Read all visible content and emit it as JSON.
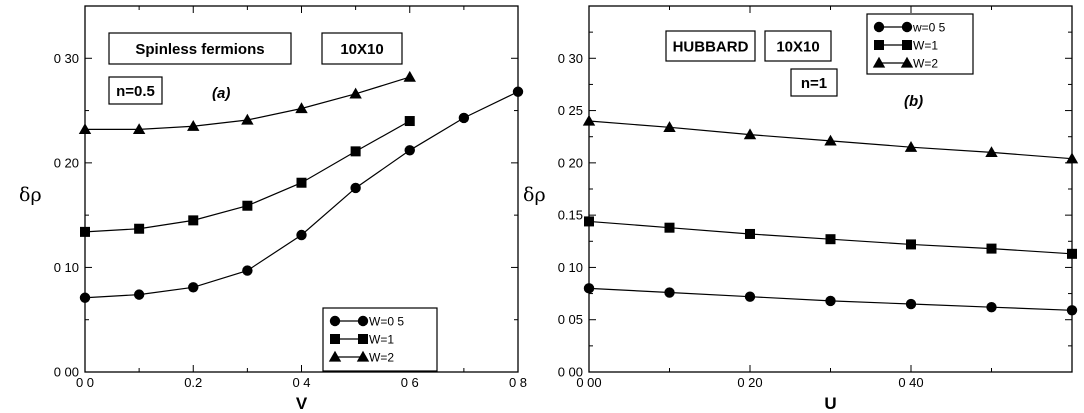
{
  "colors": {
    "ink": "#000000",
    "background": "#ffffff"
  },
  "chart_data": [
    {
      "type": "line",
      "panel_tag": "(a)",
      "annotations": [
        "Spinless fermions",
        "10X10",
        "n=0.5"
      ],
      "xlabel": "V",
      "ylabel": "δρ",
      "xlim": [
        0,
        0.8
      ],
      "ylim": [
        0,
        0.35
      ],
      "x_ticks": [
        0,
        0.2,
        0.4,
        0.6,
        0.8
      ],
      "x_tick_labels": [
        "0 0",
        "0.2",
        "0 4",
        "0 6",
        "0 8"
      ],
      "y_ticks": [
        0,
        0.1,
        0.2,
        0.3
      ],
      "y_tick_labels": [
        "0 00",
        "0 10",
        "0 20",
        "0 30"
      ],
      "legend": {
        "position": "lower-right"
      },
      "series": [
        {
          "name": "W=0 5",
          "marker": "circle",
          "x": [
            0,
            0.1,
            0.2,
            0.3,
            0.4,
            0.5,
            0.6,
            0.7,
            0.8
          ],
          "y": [
            0.071,
            0.074,
            0.081,
            0.097,
            0.131,
            0.176,
            0.212,
            0.243,
            0.268
          ]
        },
        {
          "name": "W=1",
          "marker": "square",
          "x": [
            0,
            0.1,
            0.2,
            0.3,
            0.4,
            0.5,
            0.6
          ],
          "y": [
            0.134,
            0.137,
            0.145,
            0.159,
            0.181,
            0.211,
            0.24
          ]
        },
        {
          "name": "W=2",
          "marker": "triangle",
          "x": [
            0,
            0.1,
            0.2,
            0.3,
            0.4,
            0.5,
            0.6
          ],
          "y": [
            0.232,
            0.232,
            0.235,
            0.241,
            0.252,
            0.266,
            0.282
          ]
        }
      ]
    },
    {
      "type": "line",
      "panel_tag": "(b)",
      "annotations": [
        "HUBBARD",
        "10X10",
        "n=1"
      ],
      "xlabel": "U",
      "ylabel": "δρ",
      "xlim": [
        0,
        0.6
      ],
      "ylim": [
        0,
        0.35
      ],
      "x_ticks": [
        0,
        0.2,
        0.4
      ],
      "x_tick_labels": [
        "0 00",
        "0 20",
        "0 40"
      ],
      "y_ticks": [
        0,
        0.05,
        0.1,
        0.15,
        0.2,
        0.25,
        0.3
      ],
      "y_tick_labels": [
        "0 00",
        "0 05",
        "0 10",
        "0.15",
        "0 20",
        "0 25",
        "0 30"
      ],
      "legend": {
        "position": "top-left"
      },
      "series": [
        {
          "name": "w=0 5",
          "marker": "circle",
          "x": [
            0,
            0.1,
            0.2,
            0.3,
            0.4,
            0.5,
            0.6
          ],
          "y": [
            0.08,
            0.076,
            0.072,
            0.068,
            0.065,
            0.062,
            0.059
          ]
        },
        {
          "name": "W=1",
          "marker": "square",
          "x": [
            0,
            0.1,
            0.2,
            0.3,
            0.4,
            0.5,
            0.6
          ],
          "y": [
            0.144,
            0.138,
            0.132,
            0.127,
            0.122,
            0.118,
            0.113
          ]
        },
        {
          "name": "W=2",
          "marker": "triangle",
          "x": [
            0,
            0.1,
            0.2,
            0.3,
            0.4,
            0.5,
            0.6
          ],
          "y": [
            0.24,
            0.234,
            0.227,
            0.221,
            0.215,
            0.21,
            0.204
          ]
        }
      ]
    }
  ]
}
